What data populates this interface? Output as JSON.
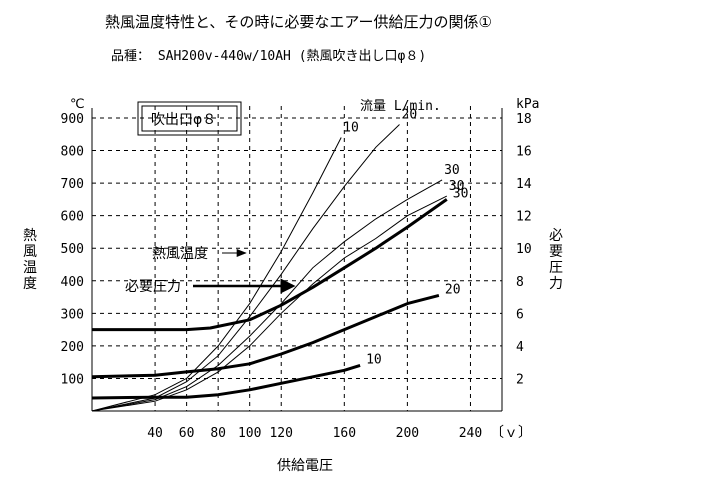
{
  "chart_data": {
    "type": "line",
    "title": "熱風温度特性と、その時に必要なエアー供給圧力の関係①",
    "subtitle": "品種： SAH200v-440w/10AH (熱風吹き出し口φ８)",
    "box_label": "吹出口φ８",
    "xlabel": "供給電圧",
    "x_unit": "〔ｖ〕",
    "ylabel_left": "熱風温度",
    "ylabel_right": "必要圧力",
    "y_unit_left": "℃",
    "y_unit_right": "kPa",
    "flow_label": "流量 L/min.",
    "annotation_temp": "熱風温度",
    "annotation_pressure": "必要圧力",
    "xlim": [
      0,
      260
    ],
    "ylim_left": [
      0,
      900
    ],
    "ylim_right": [
      0,
      18
    ],
    "x_ticks": [
      40,
      60,
      80,
      100,
      120,
      160,
      200,
      240
    ],
    "y_ticks_left": [
      100,
      200,
      300,
      400,
      500,
      600,
      700,
      800,
      900
    ],
    "y_ticks_right": [
      2,
      4,
      6,
      8,
      10,
      12,
      14,
      16,
      18
    ],
    "grid": true,
    "temperature_series": [
      {
        "name": "10",
        "points": [
          [
            0,
            0
          ],
          [
            40,
            50
          ],
          [
            60,
            100
          ],
          [
            80,
            200
          ],
          [
            100,
            330
          ],
          [
            120,
            490
          ],
          [
            140,
            670
          ],
          [
            158,
            840
          ]
        ]
      },
      {
        "name": "20",
        "points": [
          [
            0,
            0
          ],
          [
            40,
            40
          ],
          [
            60,
            90
          ],
          [
            80,
            170
          ],
          [
            100,
            290
          ],
          [
            120,
            420
          ],
          [
            140,
            560
          ],
          [
            160,
            690
          ],
          [
            180,
            810
          ],
          [
            195,
            880
          ]
        ]
      },
      {
        "name": "30",
        "points": [
          [
            0,
            0
          ],
          [
            40,
            35
          ],
          [
            60,
            75
          ],
          [
            80,
            140
          ],
          [
            100,
            230
          ],
          [
            120,
            330
          ],
          [
            140,
            440
          ],
          [
            160,
            520
          ],
          [
            180,
            590
          ],
          [
            200,
            650
          ],
          [
            222,
            710
          ]
        ]
      },
      {
        "name": "30",
        "points": [
          [
            0,
            0
          ],
          [
            40,
            30
          ],
          [
            60,
            65
          ],
          [
            80,
            120
          ],
          [
            100,
            200
          ],
          [
            120,
            300
          ],
          [
            140,
            390
          ],
          [
            160,
            470
          ],
          [
            180,
            530
          ],
          [
            200,
            600
          ],
          [
            225,
            660
          ]
        ]
      }
    ],
    "pressure_series": [
      {
        "name": "30",
        "points": [
          [
            0,
            5
          ],
          [
            40,
            5
          ],
          [
            60,
            5
          ],
          [
            75,
            5.1
          ],
          [
            100,
            5.6
          ],
          [
            120,
            6.5
          ],
          [
            140,
            7.6
          ],
          [
            160,
            8.8
          ],
          [
            180,
            10
          ],
          [
            200,
            11.3
          ],
          [
            225,
            13
          ]
        ]
      },
      {
        "name": "20",
        "points": [
          [
            0,
            2.1
          ],
          [
            40,
            2.2
          ],
          [
            60,
            2.4
          ],
          [
            80,
            2.6
          ],
          [
            100,
            2.9
          ],
          [
            120,
            3.5
          ],
          [
            140,
            4.2
          ],
          [
            160,
            5
          ],
          [
            180,
            5.8
          ],
          [
            200,
            6.6
          ],
          [
            220,
            7.1
          ]
        ]
      },
      {
        "name": "10",
        "points": [
          [
            0,
            0.8
          ],
          [
            40,
            0.85
          ],
          [
            60,
            0.85
          ],
          [
            80,
            1.0
          ],
          [
            100,
            1.3
          ],
          [
            120,
            1.7
          ],
          [
            140,
            2.1
          ],
          [
            160,
            2.5
          ],
          [
            170,
            2.8
          ]
        ]
      }
    ],
    "annotation_targets": {
      "temp": [
        100,
        480
      ],
      "pressure": [
        130,
        375
      ]
    }
  }
}
